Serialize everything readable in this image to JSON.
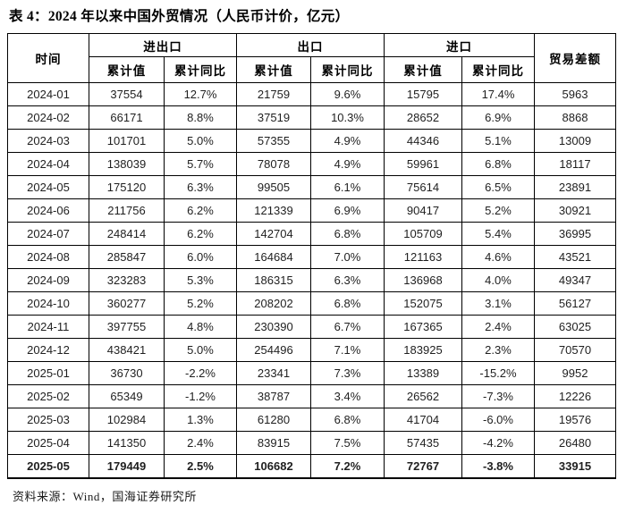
{
  "title": "表 4：2024 年以来中国外贸情况（人民币计价，亿元）",
  "source_note": "资料来源：Wind，国海证券研究所",
  "colors": {
    "background": "#ffffff",
    "text": "#1a1a1a",
    "border": "#000000"
  },
  "chart_data": {
    "type": "table",
    "title": "表 4：2024 年以来中国外贸情况（人民币计价，亿元）",
    "header": {
      "time_label": "时间",
      "groups": [
        {
          "label": "进出口",
          "sub": [
            "累计值",
            "累计同比"
          ]
        },
        {
          "label": "出口",
          "sub": [
            "累计值",
            "累计同比"
          ]
        },
        {
          "label": "进口",
          "sub": [
            "累计值",
            "累计同比"
          ]
        }
      ],
      "balance_label": "贸易差额"
    },
    "rows": [
      {
        "time": "2024-01",
        "values": [
          "37554",
          "12.7%",
          "21759",
          "9.6%",
          "15795",
          "17.4%",
          "5963"
        ],
        "bold": false
      },
      {
        "time": "2024-02",
        "values": [
          "66171",
          "8.8%",
          "37519",
          "10.3%",
          "28652",
          "6.9%",
          "8868"
        ],
        "bold": false
      },
      {
        "time": "2024-03",
        "values": [
          "101701",
          "5.0%",
          "57355",
          "4.9%",
          "44346",
          "5.1%",
          "13009"
        ],
        "bold": false
      },
      {
        "time": "2024-04",
        "values": [
          "138039",
          "5.7%",
          "78078",
          "4.9%",
          "59961",
          "6.8%",
          "18117"
        ],
        "bold": false
      },
      {
        "time": "2024-05",
        "values": [
          "175120",
          "6.3%",
          "99505",
          "6.1%",
          "75614",
          "6.5%",
          "23891"
        ],
        "bold": false
      },
      {
        "time": "2024-06",
        "values": [
          "211756",
          "6.2%",
          "121339",
          "6.9%",
          "90417",
          "5.2%",
          "30921"
        ],
        "bold": false
      },
      {
        "time": "2024-07",
        "values": [
          "248414",
          "6.2%",
          "142704",
          "6.8%",
          "105709",
          "5.4%",
          "36995"
        ],
        "bold": false
      },
      {
        "time": "2024-08",
        "values": [
          "285847",
          "6.0%",
          "164684",
          "7.0%",
          "121163",
          "4.6%",
          "43521"
        ],
        "bold": false
      },
      {
        "time": "2024-09",
        "values": [
          "323283",
          "5.3%",
          "186315",
          "6.3%",
          "136968",
          "4.0%",
          "49347"
        ],
        "bold": false
      },
      {
        "time": "2024-10",
        "values": [
          "360277",
          "5.2%",
          "208202",
          "6.8%",
          "152075",
          "3.1%",
          "56127"
        ],
        "bold": false
      },
      {
        "time": "2024-11",
        "values": [
          "397755",
          "4.8%",
          "230390",
          "6.7%",
          "167365",
          "2.4%",
          "63025"
        ],
        "bold": false
      },
      {
        "time": "2024-12",
        "values": [
          "438421",
          "5.0%",
          "254496",
          "7.1%",
          "183925",
          "2.3%",
          "70570"
        ],
        "bold": false
      },
      {
        "time": "2025-01",
        "values": [
          "36730",
          "-2.2%",
          "23341",
          "7.3%",
          "13389",
          "-15.2%",
          "9952"
        ],
        "bold": false
      },
      {
        "time": "2025-02",
        "values": [
          "65349",
          "-1.2%",
          "38787",
          "3.4%",
          "26562",
          "-7.3%",
          "12226"
        ],
        "bold": false
      },
      {
        "time": "2025-03",
        "values": [
          "102984",
          "1.3%",
          "61280",
          "6.8%",
          "41704",
          "-6.0%",
          "19576"
        ],
        "bold": false
      },
      {
        "time": "2025-04",
        "values": [
          "141350",
          "2.4%",
          "83915",
          "7.5%",
          "57435",
          "-4.2%",
          "26480"
        ],
        "bold": false
      },
      {
        "time": "2025-05",
        "values": [
          "179449",
          "2.5%",
          "106682",
          "7.2%",
          "72767",
          "-3.8%",
          "33915"
        ],
        "bold": true
      }
    ]
  }
}
